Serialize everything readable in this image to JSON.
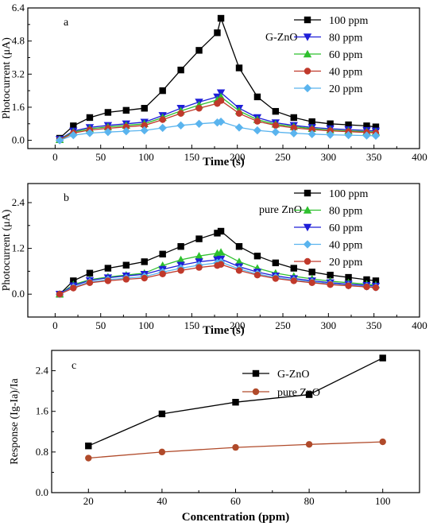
{
  "chart_data": [
    {
      "type": "line",
      "panel_label": "a",
      "annotation": "G-ZnO",
      "xlabel": "Time (s)",
      "ylabel": "Photocurrent (μA)",
      "xlim": [
        -30,
        400
      ],
      "ylim": [
        -0.4,
        6.4
      ],
      "xticks": [
        "0",
        "50",
        "100",
        "150",
        "200",
        "250",
        "300",
        "350",
        "400"
      ],
      "yticks": [
        "0.0",
        "1.6",
        "3.2",
        "4.8",
        "6.4"
      ],
      "legend_position": "top-right",
      "series": [
        {
          "name": "100 ppm",
          "color": "#000000",
          "marker": "square",
          "x": [
            5,
            20,
            38,
            58,
            78,
            98,
            118,
            138,
            158,
            178,
            182,
            202,
            222,
            242,
            262,
            282,
            302,
            322,
            342,
            352
          ],
          "y": [
            0.1,
            0.7,
            1.1,
            1.35,
            1.45,
            1.55,
            2.4,
            3.4,
            4.35,
            5.2,
            5.9,
            3.5,
            2.1,
            1.4,
            1.1,
            0.9,
            0.8,
            0.75,
            0.7,
            0.65
          ]
        },
        {
          "name": "80 ppm",
          "color": "#1f1fd8",
          "marker": "triangle-down",
          "x": [
            5,
            20,
            38,
            58,
            78,
            98,
            118,
            138,
            158,
            178,
            182,
            202,
            222,
            242,
            262,
            282,
            302,
            322,
            342,
            352
          ],
          "y": [
            0.05,
            0.45,
            0.62,
            0.72,
            0.8,
            0.88,
            1.2,
            1.55,
            1.85,
            2.1,
            2.3,
            1.55,
            1.1,
            0.85,
            0.72,
            0.62,
            0.56,
            0.52,
            0.48,
            0.45
          ]
        },
        {
          "name": "60 ppm",
          "color": "#2ec02e",
          "marker": "triangle-up",
          "x": [
            5,
            20,
            38,
            58,
            78,
            98,
            118,
            138,
            158,
            178,
            182,
            202,
            222,
            242,
            262,
            282,
            302,
            322,
            342,
            352
          ],
          "y": [
            0.03,
            0.4,
            0.56,
            0.65,
            0.72,
            0.8,
            1.1,
            1.42,
            1.7,
            1.95,
            2.1,
            1.42,
            1.0,
            0.78,
            0.66,
            0.57,
            0.5,
            0.46,
            0.42,
            0.4
          ]
        },
        {
          "name": "40 ppm",
          "color": "#c0392b",
          "marker": "circle",
          "x": [
            5,
            20,
            38,
            58,
            78,
            98,
            118,
            138,
            158,
            178,
            182,
            202,
            222,
            242,
            262,
            282,
            302,
            322,
            342,
            352
          ],
          "y": [
            0.02,
            0.35,
            0.5,
            0.58,
            0.65,
            0.72,
            1.0,
            1.3,
            1.55,
            1.78,
            1.92,
            1.3,
            0.92,
            0.72,
            0.6,
            0.52,
            0.46,
            0.42,
            0.38,
            0.36
          ]
        },
        {
          "name": "20 ppm",
          "color": "#5ab4ee",
          "marker": "diamond",
          "x": [
            5,
            20,
            38,
            58,
            78,
            98,
            118,
            138,
            158,
            178,
            182,
            202,
            222,
            242,
            262,
            282,
            302,
            322,
            342,
            352
          ],
          "y": [
            0.0,
            0.25,
            0.35,
            0.4,
            0.44,
            0.48,
            0.6,
            0.72,
            0.8,
            0.86,
            0.9,
            0.62,
            0.48,
            0.4,
            0.34,
            0.3,
            0.27,
            0.25,
            0.23,
            0.22
          ]
        }
      ]
    },
    {
      "type": "line",
      "panel_label": "b",
      "annotation": "pure ZnO",
      "xlabel": "Time (s)",
      "ylabel": "Photocurrent (μA)",
      "xlim": [
        -30,
        400
      ],
      "ylim": [
        -0.6,
        2.9
      ],
      "xticks": [
        "0",
        "50",
        "100",
        "150",
        "200",
        "250",
        "300",
        "350",
        "400"
      ],
      "yticks": [
        "0.0",
        "1.2",
        "2.4"
      ],
      "legend_position": "top-right",
      "series": [
        {
          "name": "100 ppm",
          "color": "#000000",
          "marker": "square",
          "x": [
            5,
            20,
            38,
            58,
            78,
            98,
            118,
            138,
            158,
            178,
            182,
            202,
            222,
            242,
            262,
            282,
            302,
            322,
            342,
            352
          ],
          "y": [
            0.0,
            0.35,
            0.55,
            0.68,
            0.76,
            0.85,
            1.05,
            1.25,
            1.45,
            1.6,
            1.65,
            1.25,
            1.0,
            0.82,
            0.68,
            0.58,
            0.5,
            0.44,
            0.38,
            0.35
          ]
        },
        {
          "name": "80 ppm",
          "color": "#2ec02e",
          "marker": "triangle-up",
          "x": [
            5,
            20,
            38,
            58,
            78,
            98,
            118,
            138,
            158,
            178,
            182,
            202,
            222,
            242,
            262,
            282,
            302,
            322,
            342,
            352
          ],
          "y": [
            0.0,
            0.25,
            0.38,
            0.45,
            0.5,
            0.55,
            0.75,
            0.9,
            1.0,
            1.07,
            1.1,
            0.85,
            0.68,
            0.55,
            0.47,
            0.4,
            0.34,
            0.3,
            0.26,
            0.24
          ]
        },
        {
          "name": "60 ppm",
          "color": "#1f1fd8",
          "marker": "triangle-down",
          "x": [
            5,
            20,
            38,
            58,
            78,
            98,
            118,
            138,
            158,
            178,
            182,
            202,
            222,
            242,
            262,
            282,
            302,
            322,
            342,
            352
          ],
          "y": [
            0.0,
            0.22,
            0.36,
            0.43,
            0.48,
            0.52,
            0.65,
            0.76,
            0.85,
            0.9,
            0.92,
            0.72,
            0.58,
            0.48,
            0.41,
            0.35,
            0.3,
            0.26,
            0.23,
            0.21
          ]
        },
        {
          "name": "40 ppm",
          "color": "#5ab4ee",
          "marker": "diamond",
          "x": [
            5,
            20,
            38,
            58,
            78,
            98,
            118,
            138,
            158,
            178,
            182,
            202,
            222,
            242,
            262,
            282,
            302,
            322,
            342,
            352
          ],
          "y": [
            0.0,
            0.18,
            0.32,
            0.38,
            0.42,
            0.46,
            0.58,
            0.68,
            0.76,
            0.82,
            0.84,
            0.66,
            0.53,
            0.44,
            0.37,
            0.32,
            0.27,
            0.23,
            0.2,
            0.18
          ]
        },
        {
          "name": "20 ppm",
          "color": "#c0392b",
          "marker": "circle",
          "x": [
            5,
            20,
            38,
            58,
            78,
            98,
            118,
            138,
            158,
            178,
            182,
            202,
            222,
            242,
            262,
            282,
            302,
            322,
            342,
            352
          ],
          "y": [
            0.0,
            0.16,
            0.3,
            0.35,
            0.39,
            0.42,
            0.53,
            0.62,
            0.7,
            0.75,
            0.78,
            0.62,
            0.5,
            0.41,
            0.35,
            0.3,
            0.25,
            0.22,
            0.19,
            0.17
          ]
        }
      ]
    },
    {
      "type": "line",
      "panel_label": "c",
      "xlabel": "Concentration (ppm)",
      "ylabel": "Response (Ig-Ia)/Ia",
      "xlim": [
        10,
        110
      ],
      "ylim": [
        0.0,
        2.8
      ],
      "xticks": [
        "20",
        "40",
        "60",
        "80",
        "100"
      ],
      "yticks": [
        "0.0",
        "0.8",
        "1.6",
        "2.4"
      ],
      "legend_position": "top-center",
      "series": [
        {
          "name": "G-ZnO",
          "color": "#000000",
          "marker": "square",
          "x": [
            20,
            40,
            60,
            80,
            100
          ],
          "y": [
            0.92,
            1.55,
            1.78,
            1.93,
            2.65
          ]
        },
        {
          "name": "pure ZnO",
          "color": "#b04a2a",
          "marker": "circle",
          "x": [
            20,
            40,
            60,
            80,
            100
          ],
          "y": [
            0.68,
            0.8,
            0.89,
            0.95,
            1.0
          ]
        }
      ]
    }
  ]
}
